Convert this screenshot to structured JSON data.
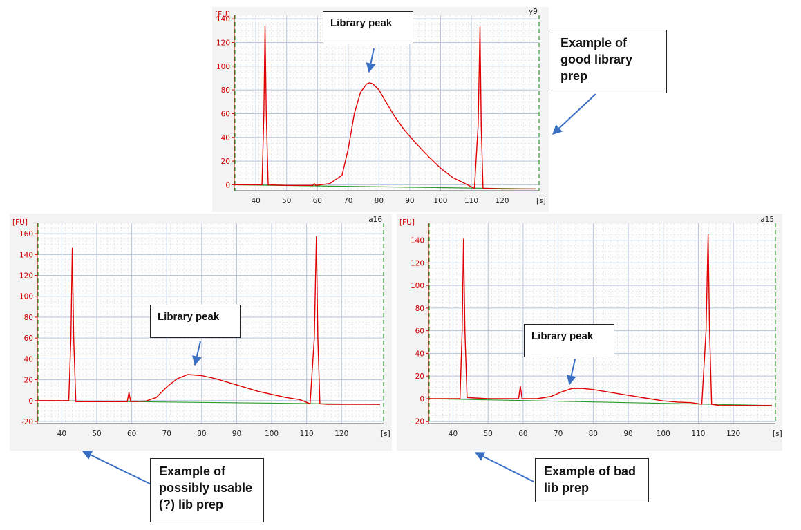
{
  "charts": {
    "top": {
      "id_label": "y9",
      "y_unit": "[FU]",
      "x_unit": "[s]",
      "chart_data": {
        "type": "line",
        "title": "",
        "xlabel": "[s]",
        "ylabel": "[FU]",
        "xlim": [
          33,
          132
        ],
        "ylim": [
          -5,
          143
        ],
        "x_ticks": [
          40,
          50,
          60,
          70,
          80,
          90,
          100,
          110,
          120
        ],
        "y_ticks": [
          0,
          20,
          40,
          60,
          80,
          100,
          120,
          140
        ],
        "grid": true,
        "series": [
          {
            "color": "#e00000",
            "x": [
              33,
              40,
              42,
              42.6,
              43,
              43.4,
              44,
              50,
              58.5,
              59,
              59.5,
              64,
              68,
              70,
              72,
              74,
              76,
              77,
              78,
              80,
              82,
              85,
              88,
              92,
              96,
              100,
              104,
              108,
              111,
              112.2,
              112.8,
              113.2,
              113.8,
              115,
              120,
              125,
              131
            ],
            "y": [
              0,
              0,
              0,
              60,
              134,
              60,
              0,
              -0.5,
              -0.5,
              1,
              -0.5,
              1,
              8,
              30,
              60,
              78,
              85,
              86,
              85,
              80,
              71,
              58,
              47,
              35,
              24,
              14,
              6,
              1,
              -3,
              50,
              133,
              50,
              -3,
              -3,
              -3.5,
              -3.5,
              -3.5
            ]
          },
          {
            "color": "#2e9a2e",
            "x": [
              33,
              131
            ],
            "y": [
              0,
              -3.5
            ]
          }
        ]
      }
    },
    "bottom_left": {
      "id_label": "a16",
      "y_unit": "[FU]",
      "x_unit": "[s]",
      "chart_data": {
        "type": "line",
        "title": "",
        "xlabel": "[s]",
        "ylabel": "[FU]",
        "xlim": [
          33,
          132
        ],
        "ylim": [
          -22,
          170
        ],
        "x_ticks": [
          40,
          50,
          60,
          70,
          80,
          90,
          100,
          110,
          120
        ],
        "y_ticks": [
          -20,
          0,
          20,
          40,
          60,
          80,
          100,
          120,
          140,
          160
        ],
        "grid": true,
        "series": [
          {
            "color": "#e00000",
            "x": [
              33,
              40,
              42,
              42.6,
              43,
              43.4,
              44,
              50,
              58.7,
              59.2,
              59.7,
              64,
              67,
              70,
              73,
              76,
              80,
              84,
              88,
              92,
              96,
              100,
              104,
              108,
              111,
              112.2,
              112.8,
              113.2,
              113.8,
              116,
              122,
              131
            ],
            "y": [
              0,
              0,
              0,
              60,
              146,
              60,
              -1,
              -1,
              -1,
              8,
              -1,
              -0.5,
              3,
              13,
              21,
              25,
              24,
              21,
              17,
              13,
              9,
              6,
              3,
              1,
              -3,
              60,
              157,
              60,
              -3,
              -3.5,
              -3.5,
              -3.5
            ]
          },
          {
            "color": "#2e9a2e",
            "x": [
              33,
              131
            ],
            "y": [
              0,
              -3.5
            ]
          }
        ]
      }
    },
    "bottom_right": {
      "id_label": "a15",
      "y_unit": "[FU]",
      "x_unit": "[s]",
      "chart_data": {
        "type": "line",
        "title": "",
        "xlabel": "[s]",
        "ylabel": "[FU]",
        "xlim": [
          33,
          132
        ],
        "ylim": [
          -22,
          155
        ],
        "x_ticks": [
          40,
          50,
          60,
          70,
          80,
          90,
          100,
          110,
          120
        ],
        "y_ticks": [
          -20,
          0,
          20,
          40,
          60,
          80,
          100,
          120,
          140
        ],
        "grid": true,
        "series": [
          {
            "color": "#e00000",
            "x": [
              33,
              40,
              42,
              42.6,
              43,
              43.4,
              44,
              50,
              58.7,
              59.2,
              59.7,
              64,
              68,
              71,
              74,
              77,
              80,
              84,
              88,
              92,
              96,
              100,
              104,
              108,
              111,
              112.2,
              112.8,
              113.2,
              113.8,
              116,
              122,
              131
            ],
            "y": [
              0,
              0,
              0,
              60,
              141,
              60,
              1,
              0,
              0,
              11,
              0,
              0,
              2,
              6,
              9,
              9,
              8,
              6,
              4,
              2,
              0,
              -2,
              -3,
              -3.5,
              -5,
              60,
              145,
              60,
              -5,
              -6,
              -6,
              -6
            ]
          },
          {
            "color": "#2e9a2e",
            "x": [
              33,
              131
            ],
            "y": [
              0,
              -6
            ]
          }
        ]
      }
    }
  },
  "callouts": {
    "lib_top": "Library peak",
    "lib_left": "Library peak",
    "lib_right": "Library peak",
    "good": [
      "Example of",
      "good library",
      "prep"
    ],
    "usable": [
      "Example of",
      "possibly usable",
      "(?) lib prep"
    ],
    "bad": [
      "Example of bad",
      "lib prep"
    ]
  }
}
